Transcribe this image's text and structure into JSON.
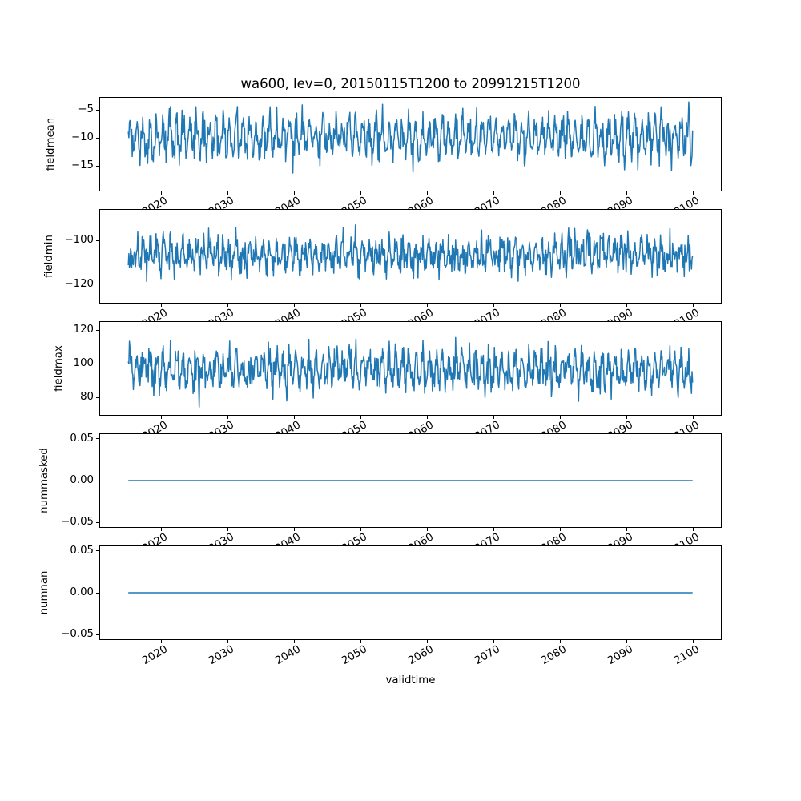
{
  "figure": {
    "title": "wa600, lev=0, 20150115T1200 to 20991215T1200",
    "xlabel": "validtime",
    "line_color": "#1f77b4",
    "line_width": 1.5,
    "background": "#ffffff"
  },
  "chart_data": [
    {
      "type": "line",
      "ylabel": "fieldmean",
      "xlabel": "validtime",
      "x_start": 2015.038,
      "x_end": 2099.956,
      "n_points": 1020,
      "xlim": [
        2010.79,
        2104.21
      ],
      "ylim": [
        -19.35,
        -2.85
      ],
      "yticks": [
        -5,
        -10,
        -15
      ],
      "ytick_decimals": 0,
      "xticks": [
        2020,
        2030,
        2040,
        2050,
        2060,
        2070,
        2080,
        2090,
        2100
      ],
      "grid": false,
      "legend": "none",
      "series": {
        "name": "fieldmean",
        "kind": "seasonal-noise",
        "approx_mean": -9.8,
        "seasonal_amplitude": 2.6,
        "noise_std": 1.5,
        "approx_min": -18.6,
        "approx_max": -3.6,
        "seed": 11
      }
    },
    {
      "type": "line",
      "ylabel": "fieldmin",
      "x_start": 2015.038,
      "x_end": 2099.956,
      "n_points": 1020,
      "xlim": [
        2010.79,
        2104.21
      ],
      "ylim": [
        -128.4,
        -86.1
      ],
      "yticks": [
        -100,
        -120
      ],
      "ytick_decimals": 0,
      "xticks": [
        2020,
        2030,
        2040,
        2050,
        2060,
        2070,
        2080,
        2090,
        2100
      ],
      "grid": false,
      "legend": "none",
      "series": {
        "name": "fieldmin",
        "kind": "seasonal-noise",
        "approx_mean": -106.5,
        "seasonal_amplitude": 4.0,
        "noise_std": 3.6,
        "approx_min": -126.5,
        "approx_max": -88.0,
        "seed": 22
      }
    },
    {
      "type": "line",
      "ylabel": "fieldmax",
      "x_start": 2015.038,
      "x_end": 2099.956,
      "n_points": 1020,
      "xlim": [
        2010.79,
        2104.21
      ],
      "ylim": [
        69.5,
        125.0
      ],
      "yticks": [
        120,
        100,
        80
      ],
      "ytick_decimals": 0,
      "xticks": [
        2020,
        2030,
        2040,
        2050,
        2060,
        2070,
        2080,
        2090,
        2100
      ],
      "grid": false,
      "legend": "none",
      "series": {
        "name": "fieldmax",
        "kind": "seasonal-noise",
        "approx_mean": 96.5,
        "seasonal_amplitude": 7.5,
        "noise_std": 5.2,
        "approx_min": 72.0,
        "approx_max": 122.5,
        "seed": 33
      }
    },
    {
      "type": "line",
      "ylabel": "nummasked",
      "x_start": 2015.038,
      "x_end": 2099.956,
      "n_points": 1020,
      "xlim": [
        2010.79,
        2104.21
      ],
      "ylim": [
        -0.0555,
        0.0555
      ],
      "yticks": [
        0.05,
        0.0,
        -0.05
      ],
      "ytick_decimals": 2,
      "xticks": [
        2020,
        2030,
        2040,
        2050,
        2060,
        2070,
        2080,
        2090,
        2100
      ],
      "grid": false,
      "legend": "none",
      "series": {
        "name": "nummasked",
        "kind": "constant",
        "value": 0
      }
    },
    {
      "type": "line",
      "ylabel": "numnan",
      "x_start": 2015.038,
      "x_end": 2099.956,
      "n_points": 1020,
      "xlim": [
        2010.79,
        2104.21
      ],
      "ylim": [
        -0.0555,
        0.0555
      ],
      "yticks": [
        0.05,
        0.0,
        -0.05
      ],
      "ytick_decimals": 2,
      "xticks": [
        2020,
        2030,
        2040,
        2050,
        2060,
        2070,
        2080,
        2090,
        2100
      ],
      "grid": false,
      "legend": "none",
      "series": {
        "name": "numnan",
        "kind": "constant",
        "value": 0
      }
    }
  ]
}
